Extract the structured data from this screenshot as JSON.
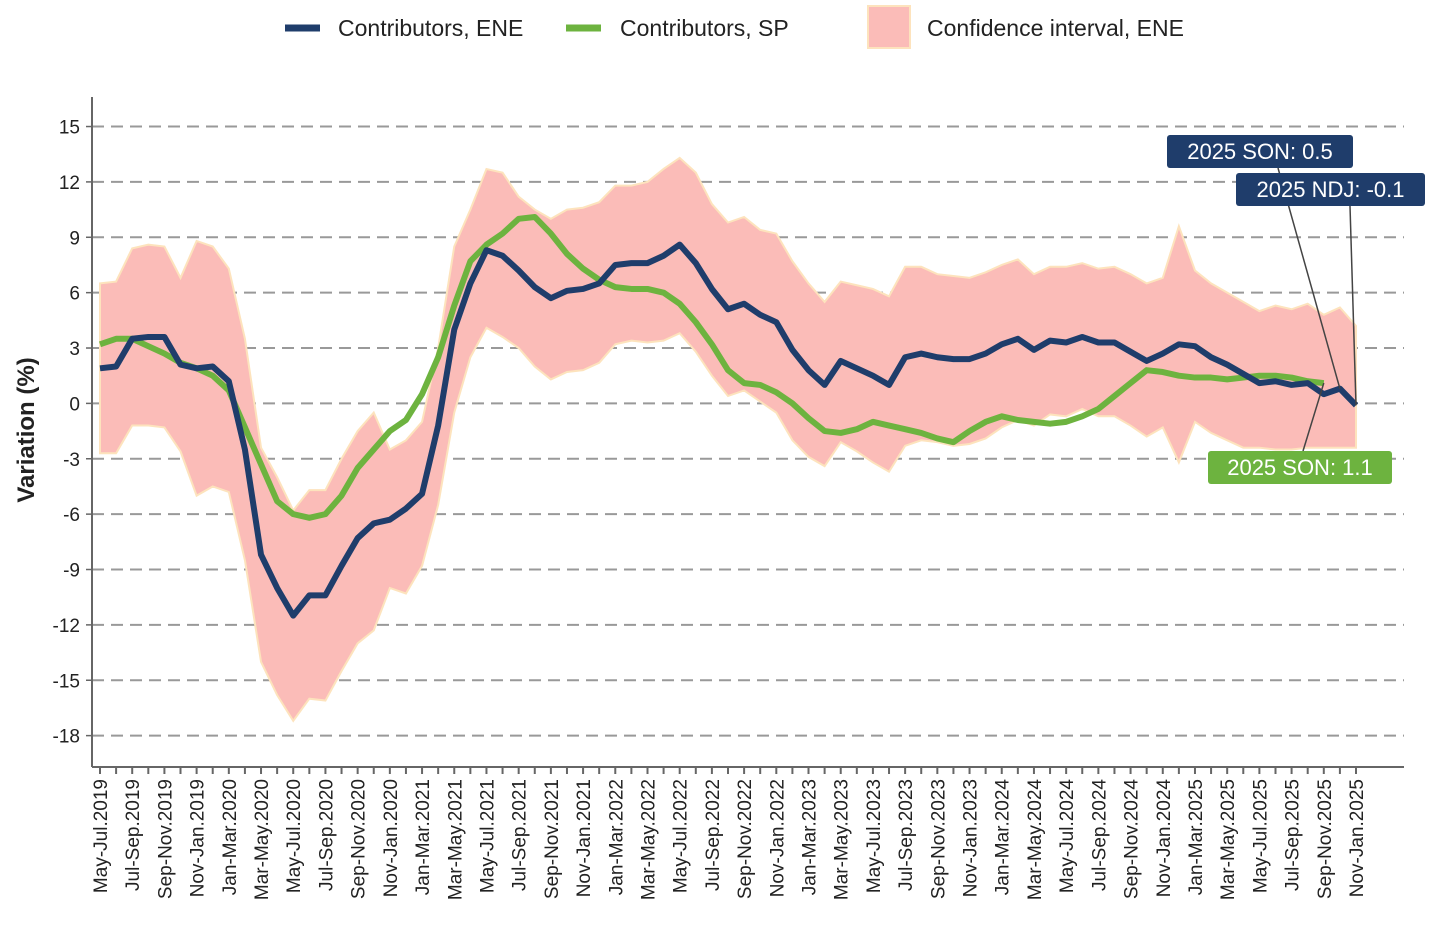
{
  "chart_data": {
    "type": "line",
    "y_label": "Variation (%)",
    "categories": [
      "May-Jul.2019",
      null,
      "Jul-Sep.2019",
      null,
      "Sep-Nov.2019",
      null,
      "Nov-Jan.2019",
      null,
      "Jan-Mar.2020",
      null,
      "Mar-May.2020",
      null,
      "May-Jul.2020",
      null,
      "Jul-Sep.2020",
      null,
      "Sep-Nov.2020",
      null,
      "Nov-Jan.2020",
      null,
      "Jan-Mar.2021",
      null,
      "Mar-May.2021",
      null,
      "May-Jul.2021",
      null,
      "Jul-Sep.2021",
      null,
      "Sep-Nov.2021",
      null,
      "Nov-Jan.2021",
      null,
      "Jan-Mar.2022",
      null,
      "Mar-May.2022",
      null,
      "May-Jul.2022",
      null,
      "Jul-Sep.2022",
      null,
      "Sep-Nov.2022",
      null,
      "Nov-Jan.2022",
      null,
      "Jan-Mar.2023",
      null,
      "Mar-May.2023",
      null,
      "May-Jul.2023",
      null,
      "Jul-Sep.2023",
      null,
      "Sep-Nov.2023",
      null,
      "Nov-Jan.2023",
      null,
      "Jan-Mar.2024",
      null,
      "Mar-May.2024",
      null,
      "May-Jul.2024",
      null,
      "Jul-Sep.2024",
      null,
      "Sep-Nov.2024",
      null,
      "Nov-Jan.2024",
      null,
      "Jan-Mar.2025",
      null,
      "Mar-May.2025",
      null,
      "May-Jul.2025",
      null,
      "Jul-Sep.2025",
      null,
      "Sep-Nov.2025",
      null,
      "Nov-Jan.2025"
    ],
    "band": {
      "name": "Confidence interval, ENE",
      "color": "#fbbcb8",
      "edge_color": "#fde3bd",
      "upper": [
        6.5,
        6.6,
        8.4,
        8.6,
        8.5,
        6.8,
        8.8,
        8.5,
        7.3,
        3.5,
        -2.4,
        -4.0,
        -5.8,
        -4.7,
        -4.7,
        -3.0,
        -1.5,
        -0.5,
        -2.5,
        -2.0,
        -1.0,
        3.0,
        8.5,
        10.5,
        12.7,
        12.5,
        11.2,
        10.5,
        10.0,
        10.5,
        10.6,
        10.9,
        11.8,
        11.8,
        12.0,
        12.7,
        13.3,
        12.5,
        10.8,
        9.8,
        10.1,
        9.4,
        9.2,
        7.7,
        6.5,
        5.5,
        6.6,
        6.4,
        6.2,
        5.8,
        7.4,
        7.4,
        7.0,
        6.9,
        6.8,
        7.1,
        7.5,
        7.8,
        7.0,
        7.4,
        7.4,
        7.6,
        7.3,
        7.4,
        7.0,
        6.5,
        6.8,
        9.6,
        7.2,
        6.5,
        6.0,
        5.5,
        5.0,
        5.3,
        5.1,
        5.4,
        4.8,
        5.2,
        4.2
      ],
      "lower": [
        -2.7,
        -2.7,
        -1.2,
        -1.2,
        -1.3,
        -2.6,
        -5.0,
        -4.5,
        -4.8,
        -8.5,
        -14.0,
        -15.8,
        -17.2,
        -16.0,
        -16.1,
        -14.5,
        -13.0,
        -12.3,
        -10.0,
        -10.3,
        -8.8,
        -5.5,
        -0.5,
        2.5,
        4.1,
        3.6,
        3.0,
        2.0,
        1.3,
        1.7,
        1.8,
        2.2,
        3.2,
        3.4,
        3.3,
        3.4,
        3.8,
        2.8,
        1.5,
        0.4,
        0.7,
        0.1,
        -0.5,
        -2.0,
        -2.9,
        -3.4,
        -2.1,
        -2.6,
        -3.2,
        -3.7,
        -2.3,
        -2.0,
        -2.1,
        -2.3,
        -2.2,
        -1.9,
        -1.3,
        -0.9,
        -1.2,
        -0.6,
        -0.7,
        -0.3,
        -0.7,
        -0.7,
        -1.2,
        -1.8,
        -1.3,
        -3.2,
        -1.0,
        -1.6,
        -2.0,
        -2.4,
        -2.4,
        -2.5,
        -2.5,
        -2.4,
        -2.4,
        -2.4,
        -2.4
      ]
    },
    "series": [
      {
        "name": "Contributors, ENE",
        "color": "#1f3d6b",
        "values": [
          1.9,
          2.0,
          3.5,
          3.6,
          3.6,
          2.1,
          1.9,
          2.0,
          1.2,
          -2.5,
          -8.2,
          -10.0,
          -11.5,
          -10.4,
          -10.4,
          -8.8,
          -7.3,
          -6.5,
          -6.3,
          -5.7,
          -4.9,
          -1.2,
          4.0,
          6.5,
          8.3,
          8.0,
          7.2,
          6.3,
          5.7,
          6.1,
          6.2,
          6.5,
          7.5,
          7.6,
          7.6,
          8.0,
          8.6,
          7.6,
          6.2,
          5.1,
          5.4,
          4.8,
          4.4,
          2.9,
          1.8,
          1.0,
          2.3,
          1.9,
          1.5,
          1.0,
          2.5,
          2.7,
          2.5,
          2.4,
          2.4,
          2.7,
          3.2,
          3.5,
          2.9,
          3.4,
          3.3,
          3.6,
          3.3,
          3.3,
          2.8,
          2.3,
          2.7,
          3.2,
          3.1,
          2.5,
          2.1,
          1.6,
          1.1,
          1.2,
          1.0,
          1.1,
          0.5,
          0.8,
          -0.1
        ]
      },
      {
        "name": "Contributors, SP",
        "color": "#6db33f",
        "values": [
          3.2,
          3.5,
          3.5,
          3.1,
          2.7,
          2.2,
          1.9,
          1.5,
          0.7,
          -1.3,
          -3.3,
          -5.3,
          -6.0,
          -6.2,
          -6.0,
          -5.0,
          -3.5,
          -2.5,
          -1.5,
          -0.9,
          0.5,
          2.5,
          5.3,
          7.7,
          8.6,
          9.2,
          10.0,
          10.1,
          9.2,
          8.1,
          7.3,
          6.7,
          6.3,
          6.2,
          6.2,
          6.0,
          5.4,
          4.4,
          3.2,
          1.8,
          1.1,
          1.0,
          0.6,
          0.0,
          -0.8,
          -1.5,
          -1.6,
          -1.4,
          -1.0,
          -1.2,
          -1.4,
          -1.6,
          -1.9,
          -2.1,
          -1.5,
          -1.0,
          -0.7,
          -0.9,
          -1.0,
          -1.1,
          -1.0,
          -0.7,
          -0.3,
          0.4,
          1.1,
          1.8,
          1.7,
          1.5,
          1.4,
          1.4,
          1.3,
          1.4,
          1.5,
          1.5,
          1.4,
          1.2,
          1.1,
          null,
          null
        ]
      }
    ],
    "annotations": [
      {
        "text": "2025 SON: 0.5",
        "color": "#1f3d6b"
      },
      {
        "text": "2025 NDJ: -0.1",
        "color": "#1f3d6b"
      },
      {
        "text": "2025 SON: 1.1",
        "color": "#6db33f"
      }
    ],
    "ylim": [
      -19.7,
      16.6
    ],
    "yticks": [
      -18,
      -15,
      -12,
      -9,
      -6,
      -3,
      0,
      3,
      6,
      9,
      12,
      15
    ],
    "grid": true
  }
}
